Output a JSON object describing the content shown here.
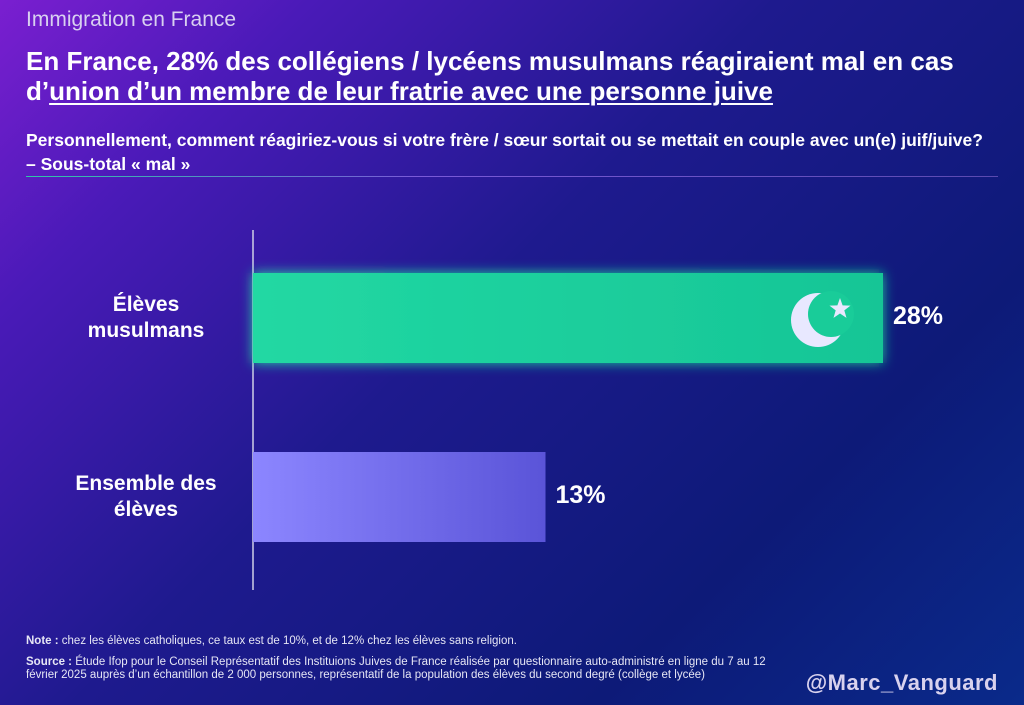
{
  "header": {
    "kicker": "Immigration en France",
    "headline_part1": "En France, 28% des collégiens / lycéens musulmans réagiraient mal en cas d’",
    "headline_underlined": "union d’un membre de leur fratrie avec une personne juive",
    "subtitle": "Personnellement, comment réagiriez-vous si votre frère / sœur sortait ou se mettait en couple avec un(e) juif/juive? – Sous-total « mal »"
  },
  "chart_data": {
    "type": "bar",
    "orientation": "horizontal",
    "categories": [
      "Élèves musulmans",
      "Ensemble des élèves"
    ],
    "values": [
      28,
      13
    ],
    "value_labels": [
      "28%",
      "13%"
    ],
    "xlim": [
      0,
      28
    ],
    "colors": [
      "#1fd39e",
      "#7a70f0"
    ],
    "icons": [
      "crescent-star-icon",
      ""
    ]
  },
  "footer": {
    "note_label": "Note :",
    "note_text": " chez les élèves catholiques, ce taux est de 10%, et de 12% chez les élèves sans religion.",
    "source_label": "Source :",
    "source_text": " Étude Ifop pour le Conseil Représentatif des Instituions Juives de France réalisée par questionnaire auto-administré en ligne du 7 au 12 février 2025 auprès d’un échantillon de 2 000 personnes, représentatif de la population des élèves du second degré (collège et lycée)",
    "handle": "@Marc_Vanguard"
  }
}
